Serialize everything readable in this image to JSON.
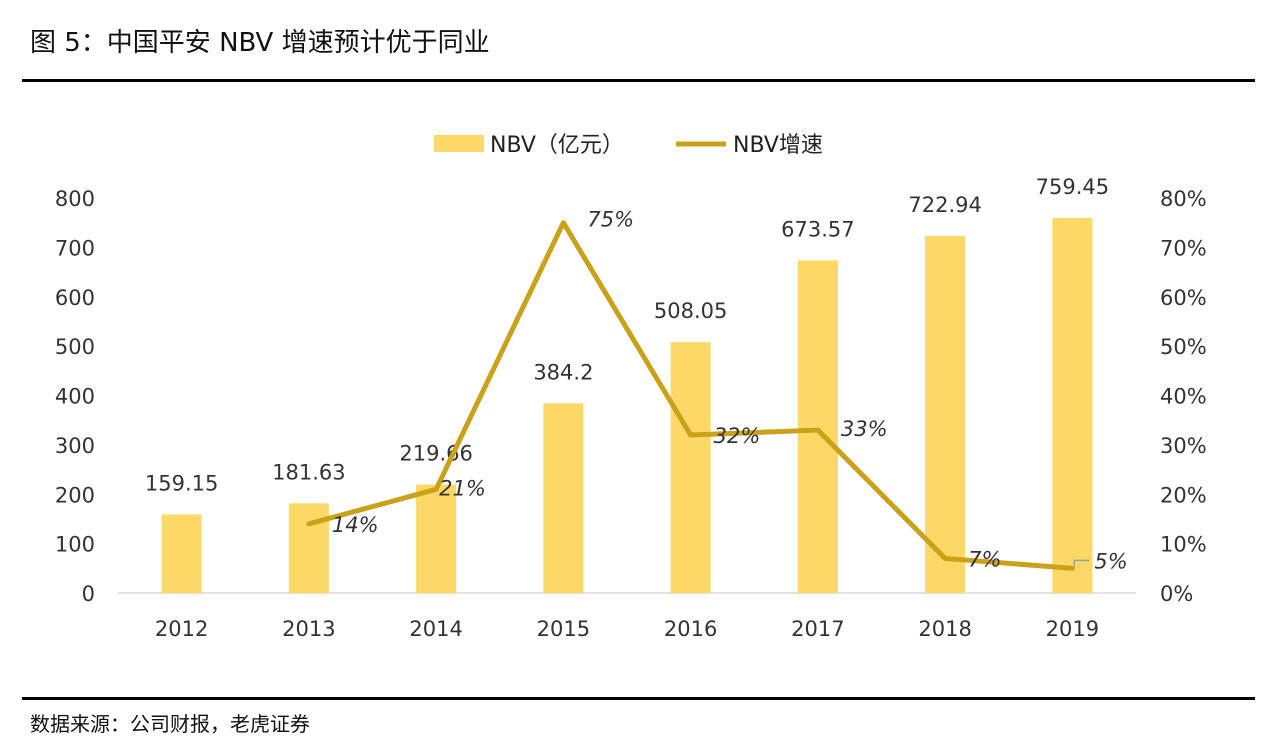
{
  "title": "图 5：中国平安 NBV 增速预计优于同业",
  "source": "数据来源：公司财报，老虎证券",
  "colors": {
    "bar": "#FDD866",
    "line": "#C9A21A",
    "axis": "#D9D9D9",
    "connector": "#9E9E9E"
  },
  "chart_data": {
    "type": "bar",
    "categories": [
      "2012",
      "2013",
      "2014",
      "2015",
      "2016",
      "2017",
      "2018",
      "2019"
    ],
    "series": [
      {
        "name": "NBV（亿元）",
        "type": "bar",
        "axis": "left",
        "values": [
          159.15,
          181.63,
          219.66,
          384.2,
          508.05,
          673.57,
          722.94,
          759.45
        ],
        "labels": [
          "159.15",
          "181.63",
          "219.66",
          "384.2",
          "508.05",
          "673.57",
          "722.94",
          "759.45"
        ]
      },
      {
        "name": "NBV增速",
        "type": "line",
        "axis": "right",
        "values": [
          null,
          0.14,
          0.21,
          0.75,
          0.32,
          0.33,
          0.07,
          0.05
        ],
        "labels": [
          "",
          "14%",
          "21%",
          "75%",
          "32%",
          "33%",
          "7%",
          "5%"
        ]
      }
    ],
    "left_axis": {
      "ylim": [
        0,
        800
      ],
      "ticks": [
        "0",
        "100",
        "200",
        "300",
        "400",
        "500",
        "600",
        "700",
        "800"
      ]
    },
    "right_axis": {
      "ylim": [
        0,
        0.8
      ],
      "ticks": [
        "0%",
        "10%",
        "20%",
        "30%",
        "40%",
        "50%",
        "60%",
        "70%",
        "80%"
      ]
    },
    "legend": {
      "position": "top-center"
    },
    "grid": false
  }
}
